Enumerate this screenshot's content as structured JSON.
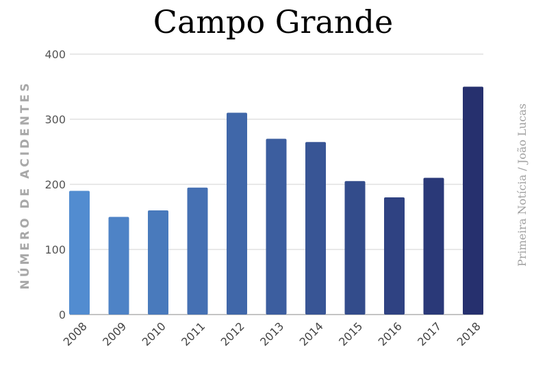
{
  "chart_data": {
    "type": "bar",
    "title": "Campo Grande",
    "xlabel": "",
    "ylabel": "NÚMERO DE ACIDENTES",
    "source": "Primeira Notícia / João Lucas",
    "categories": [
      "2008",
      "2009",
      "2010",
      "2011",
      "2012",
      "2013",
      "2014",
      "2015",
      "2016",
      "2017",
      "2018"
    ],
    "values": [
      190,
      150,
      160,
      195,
      310,
      270,
      265,
      205,
      180,
      210,
      350
    ],
    "ylim": [
      0,
      400
    ],
    "yticks": [
      0,
      100,
      200,
      300,
      400
    ],
    "grid": true,
    "legend": "none",
    "colors": {
      "bar_start": "#528CD0",
      "bar_end": "#26306E",
      "grid": "#d0d0d0"
    }
  }
}
